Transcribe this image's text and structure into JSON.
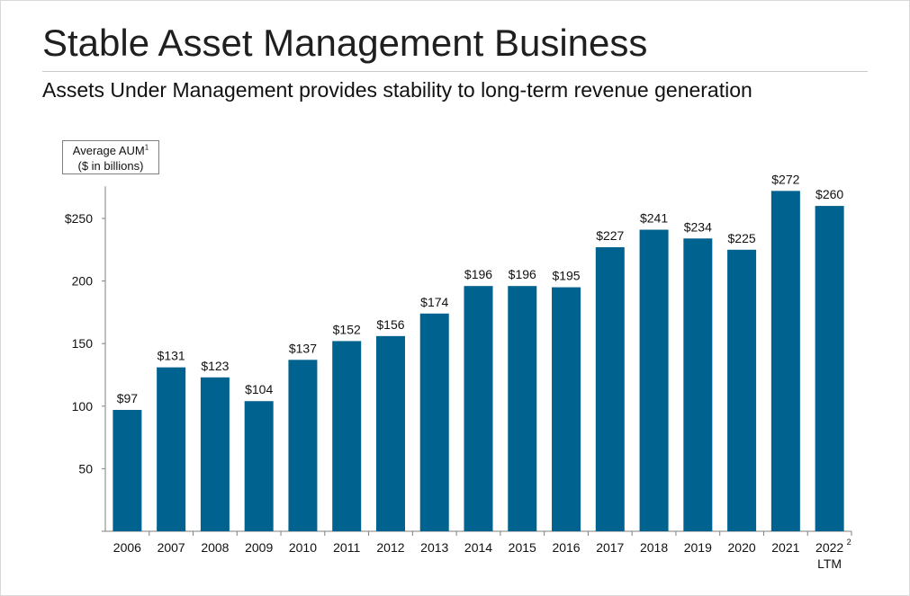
{
  "slide": {
    "title": "Stable Asset Management Business",
    "subtitle": "Assets Under Management provides stability to long-term revenue generation"
  },
  "unit_label": {
    "line1": "Average AUM",
    "line1_superscript": "1",
    "line2": "($ in billions)"
  },
  "colors": {
    "bar": "#00628E",
    "axis": "#7f7f7f",
    "text": "#111111"
  },
  "chart_data": {
    "type": "bar",
    "title": "Average AUM",
    "ylabel": "($ in billions)",
    "xlabel": "",
    "grid": false,
    "ylim": [
      0,
      275
    ],
    "y_ticks": [
      {
        "value": 50,
        "label": "50"
      },
      {
        "value": 100,
        "label": "100"
      },
      {
        "value": 150,
        "label": "150"
      },
      {
        "value": 200,
        "label": "200"
      },
      {
        "value": 250,
        "label": "$250"
      }
    ],
    "categories": [
      "2006",
      "2007",
      "2008",
      "2009",
      "2010",
      "2011",
      "2012",
      "2013",
      "2014",
      "2015",
      "2016",
      "2017",
      "2018",
      "2019",
      "2020",
      "2021",
      "2022"
    ],
    "category_second_line": [
      "",
      "",
      "",
      "",
      "",
      "",
      "",
      "",
      "",
      "",
      "",
      "",
      "",
      "",
      "",
      "",
      "LTM"
    ],
    "category_superscript": [
      "",
      "",
      "",
      "",
      "",
      "",
      "",
      "",
      "",
      "",
      "",
      "",
      "",
      "",
      "",
      "",
      "2"
    ],
    "values": [
      97,
      131,
      123,
      104,
      137,
      152,
      156,
      174,
      196,
      196,
      195,
      227,
      241,
      234,
      225,
      272,
      260
    ],
    "data_labels": [
      "$97",
      "$131",
      "$123",
      "$104",
      "$137",
      "$152",
      "$156",
      "$174",
      "$196",
      "$196",
      "$195",
      "$227",
      "$241",
      "$234",
      "$225",
      "$272",
      "$260"
    ]
  }
}
